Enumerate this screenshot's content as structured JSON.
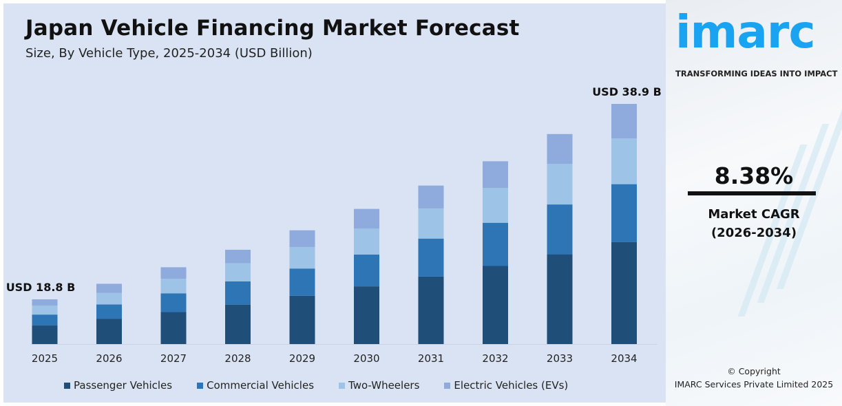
{
  "header": {
    "title": "Japan Vehicle Financing Market Forecast",
    "subtitle": "Size, By Vehicle Type, 2025-2034 (USD Billion)"
  },
  "chart_data": {
    "type": "bar",
    "stacked": true,
    "title": "Japan Vehicle Financing Market Forecast",
    "subtitle": "Size, By Vehicle Type, 2025-2034 (USD Billion)",
    "categories": [
      "2025",
      "2026",
      "2027",
      "2028",
      "2029",
      "2030",
      "2031",
      "2032",
      "2033",
      "2034"
    ],
    "series": [
      {
        "name": "Passenger Vehicles",
        "color": "#1f4e79",
        "values": [
          7.8,
          8.5,
          9.2,
          10.0,
          11.0,
          12.0,
          13.0,
          14.1,
          15.3,
          16.5
        ]
      },
      {
        "name": "Commercial Vehicles",
        "color": "#2e75b6",
        "values": [
          4.6,
          4.9,
          5.4,
          5.9,
          6.2,
          6.6,
          7.3,
          7.8,
          8.5,
          9.4
        ]
      },
      {
        "name": "Two-Wheelers",
        "color": "#9dc3e6",
        "values": [
          3.8,
          3.9,
          4.2,
          4.6,
          4.9,
          5.4,
          5.8,
          6.3,
          6.9,
          7.4
        ]
      },
      {
        "name": "Electric Vehicles (EVs)",
        "color": "#8faadc",
        "values": [
          2.6,
          3.1,
          3.3,
          3.4,
          3.8,
          4.1,
          4.4,
          4.8,
          5.1,
          5.6
        ]
      }
    ],
    "annotations": [
      {
        "category": "2025",
        "text": "USD 18.8 B"
      },
      {
        "category": "2034",
        "text": "USD 38.9 B"
      }
    ],
    "xlabel": "",
    "ylabel": "",
    "grid": false,
    "legend": "bottom"
  },
  "side": {
    "logo": "imarc",
    "tagline": "TRANSFORMING IDEAS INTO IMPACT",
    "cagr": "8.38%",
    "cagr_label": "Market CAGR",
    "cagr_period": "(2026-2034)",
    "copyright": "© Copyright",
    "company": "IMARC Services Private Limited 2025"
  }
}
